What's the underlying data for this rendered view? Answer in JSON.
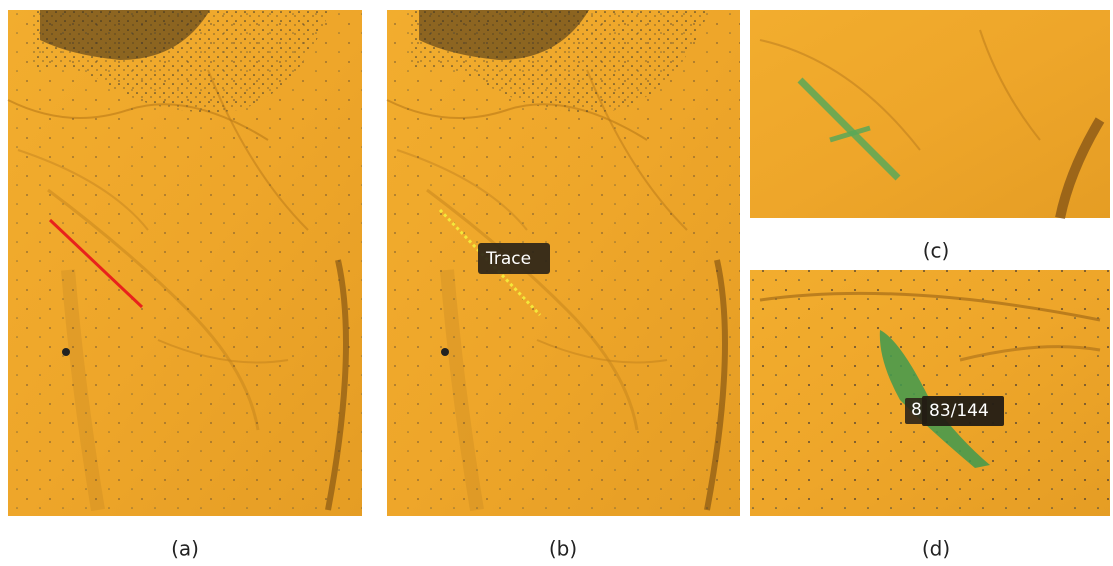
{
  "panels": [
    {
      "label": "(a)"
    },
    {
      "label": "(b)"
    },
    {
      "label": "(c)"
    },
    {
      "label": "(d)"
    }
  ],
  "annotations": {
    "trace": "Trace",
    "count_hidden": "8",
    "count": "83/144"
  }
}
